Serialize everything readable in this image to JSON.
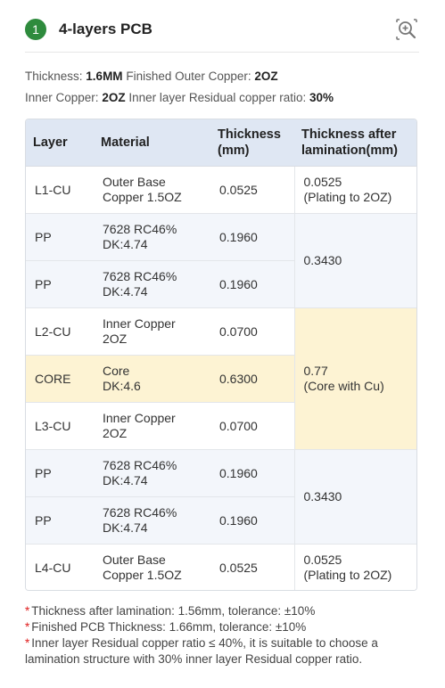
{
  "header": {
    "step_number": "1",
    "title": "4-layers PCB",
    "zoom_icon": "zoom-in-icon"
  },
  "specs": {
    "thickness_label": "Thickness:",
    "thickness_value": "1.6MM",
    "outer_copper_label": "Finished Outer Copper:",
    "outer_copper_value": "2OZ",
    "inner_copper_label": "Inner Copper:",
    "inner_copper_value": "2OZ",
    "residual_label": "Inner layer Residual copper ratio:",
    "residual_value": "30%"
  },
  "table": {
    "headers": {
      "layer": "Layer",
      "material": "Material",
      "thickness_line1": "Thickness",
      "thickness_line2": "(mm)",
      "after_line1": "Thickness after",
      "after_line2": "lamination(mm)"
    },
    "rows": [
      {
        "layer": "L1-CU",
        "material1": "Outer Base",
        "material2": "Copper 1.5OZ",
        "thickness": "0.0525"
      },
      {
        "layer": "PP",
        "material1": "7628 RC46%",
        "material2": "DK:4.74",
        "thickness": "0.1960"
      },
      {
        "layer": "PP",
        "material1": "7628 RC46%",
        "material2": "DK:4.74",
        "thickness": "0.1960"
      },
      {
        "layer": "L2-CU",
        "material1": "Inner Copper",
        "material2": "2OZ",
        "thickness": "0.0700"
      },
      {
        "layer": "CORE",
        "material1": "Core",
        "material2": "DK:4.6",
        "thickness": "0.6300"
      },
      {
        "layer": "L3-CU",
        "material1": "Inner Copper",
        "material2": "2OZ",
        "thickness": "0.0700"
      },
      {
        "layer": "PP",
        "material1": "7628 RC46%",
        "material2": "DK:4.74",
        "thickness": "0.1960"
      },
      {
        "layer": "PP",
        "material1": "7628 RC46%",
        "material2": "DK:4.74",
        "thickness": "0.1960"
      },
      {
        "layer": "L4-CU",
        "material1": "Outer Base",
        "material2": "Copper 1.5OZ",
        "thickness": "0.0525"
      }
    ],
    "after_groups": [
      {
        "line1": "0.0525",
        "line2": "(Plating to 2OZ)"
      },
      {
        "line1": "0.3430",
        "line2": ""
      },
      {
        "line1": "0.77",
        "line2": "(Core with Cu)"
      },
      {
        "line1": "0.3430",
        "line2": ""
      },
      {
        "line1": "0.0525",
        "line2": "(Plating to 2OZ)"
      }
    ]
  },
  "notes": [
    "Thickness after lamination: 1.56mm, tolerance: ±10%",
    "Finished PCB Thickness: 1.66mm, tolerance: ±10%",
    "Inner layer Residual copper ratio ≤ 40%, it is suitable to choose a lamination structure with 30% inner layer Residual copper ratio."
  ],
  "colors": {
    "badge": "#2e8b3d",
    "header_bg": "#dfe7f3",
    "row_blue": "#f3f6fb",
    "row_yellow": "#fdf3d3",
    "asterisk": "#e02020"
  }
}
